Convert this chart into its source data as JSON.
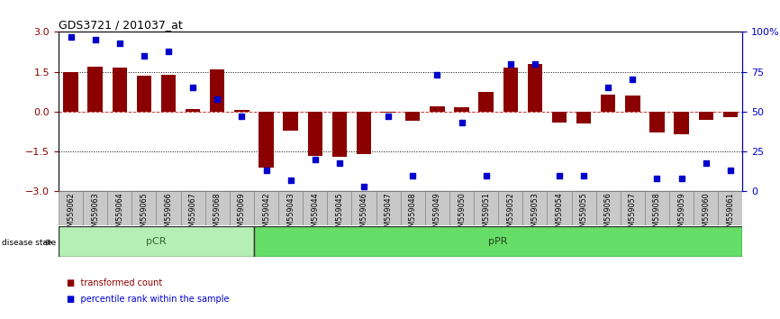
{
  "title": "GDS3721 / 201037_at",
  "samples": [
    "GSM559062",
    "GSM559063",
    "GSM559064",
    "GSM559065",
    "GSM559066",
    "GSM559067",
    "GSM559068",
    "GSM559069",
    "GSM559042",
    "GSM559043",
    "GSM559044",
    "GSM559045",
    "GSM559046",
    "GSM559047",
    "GSM559048",
    "GSM559049",
    "GSM559050",
    "GSM559051",
    "GSM559052",
    "GSM559053",
    "GSM559054",
    "GSM559055",
    "GSM559056",
    "GSM559057",
    "GSM559058",
    "GSM559059",
    "GSM559060",
    "GSM559061"
  ],
  "transformed_count": [
    1.5,
    1.7,
    1.65,
    1.35,
    1.4,
    0.1,
    1.6,
    0.05,
    -2.1,
    -0.7,
    -1.65,
    -1.7,
    -1.6,
    -0.05,
    -0.35,
    0.2,
    0.15,
    0.75,
    1.65,
    1.8,
    -0.4,
    -0.45,
    0.65,
    0.6,
    -0.8,
    -0.85,
    -0.3,
    -0.2
  ],
  "percentile_rank": [
    97,
    95,
    93,
    85,
    88,
    65,
    58,
    47,
    13,
    7,
    20,
    18,
    3,
    47,
    10,
    73,
    43,
    10,
    80,
    80,
    10,
    10,
    65,
    70,
    8,
    8,
    18,
    13
  ],
  "pcr_count": 8,
  "bar_color": "#8B0000",
  "dot_color": "#0000CC",
  "ylim_left": [
    -3,
    3
  ],
  "yticks_left": [
    -3,
    -1.5,
    0,
    1.5,
    3
  ],
  "yticks_right_pct": [
    0,
    25,
    50,
    75,
    100
  ],
  "pcr_color": "#b6efb6",
  "ppr_color": "#66dd66",
  "legend_items": [
    "transformed count",
    "percentile rank within the sample"
  ],
  "bar_color_legend": "#cc0000",
  "dot_color_legend": "#0000cc"
}
